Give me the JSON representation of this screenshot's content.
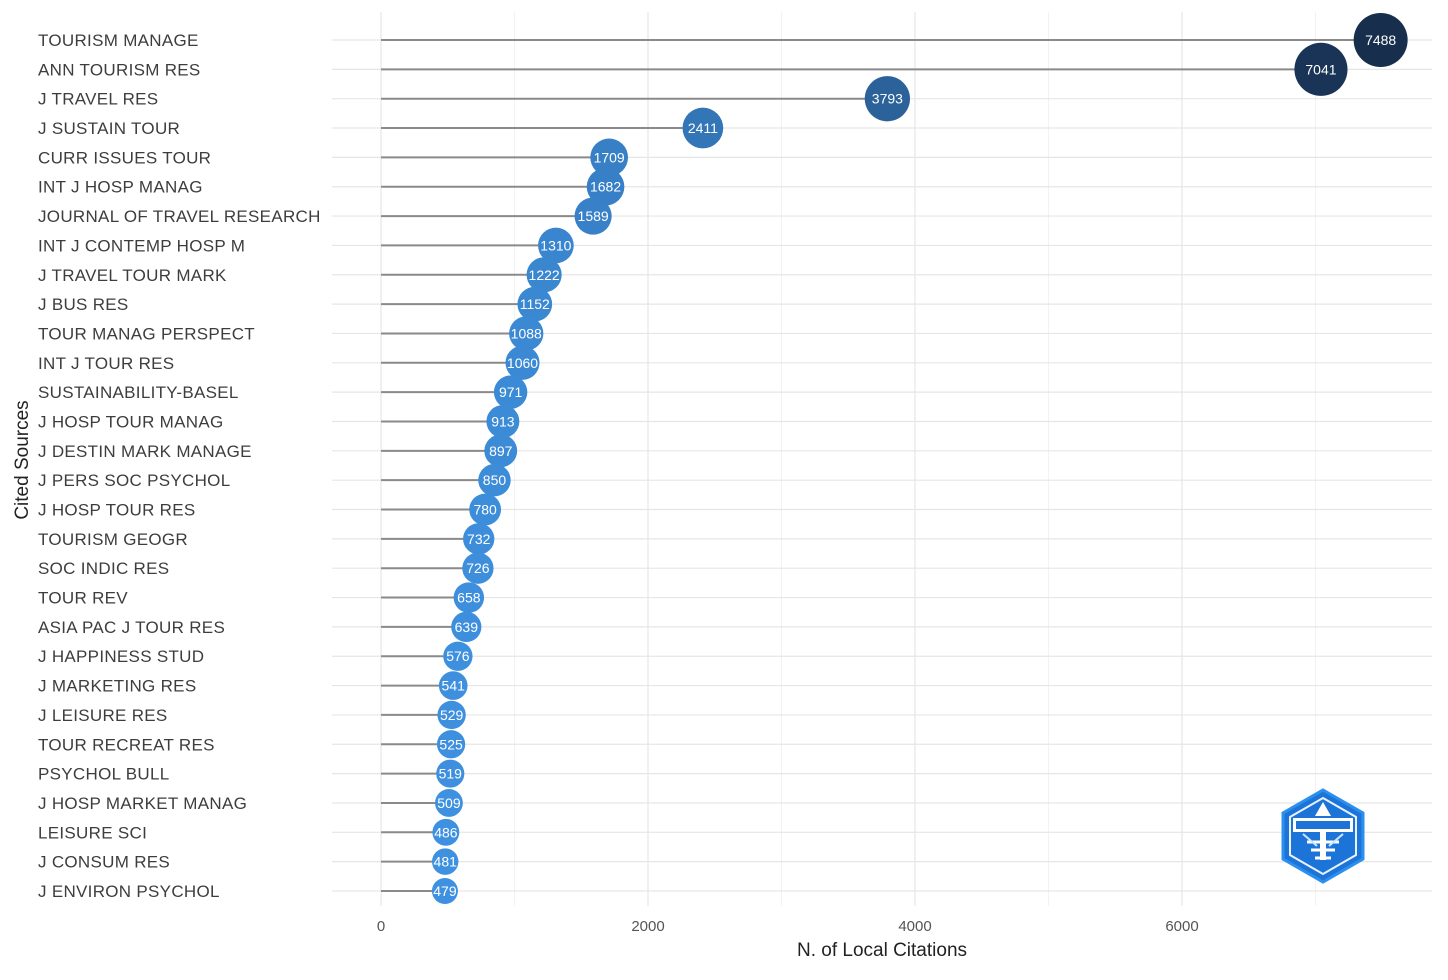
{
  "chart_data": {
    "type": "lollipop",
    "title": "",
    "xlabel": "N. of Local Citations",
    "ylabel": "Cited Sources",
    "xlim": [
      0,
      7600
    ],
    "xticks": [
      0,
      2000,
      4000,
      6000
    ],
    "grid": true,
    "color_scale": {
      "low": "#3e91e0",
      "high": "#172e4d"
    },
    "categories": [
      "TOURISM MANAGE",
      "ANN TOURISM RES",
      "J TRAVEL RES",
      "J SUSTAIN TOUR",
      "CURR ISSUES TOUR",
      "INT J HOSP MANAG",
      "JOURNAL OF TRAVEL RESEARCH",
      "INT J CONTEMP HOSP M",
      "J TRAVEL TOUR MARK",
      "J BUS RES",
      "TOUR MANAG PERSPECT",
      "INT J TOUR RES",
      "SUSTAINABILITY-BASEL",
      "J HOSP TOUR MANAG",
      "J DESTIN MARK MANAGE",
      "J PERS SOC PSYCHOL",
      "J HOSP TOUR RES",
      "TOURISM GEOGR",
      "SOC INDIC RES",
      "TOUR REV",
      "ASIA PAC J TOUR RES",
      "J HAPPINESS STUD",
      "J MARKETING RES",
      "J LEISURE RES",
      "TOUR RECREAT RES",
      "PSYCHOL BULL",
      "J HOSP MARKET MANAG",
      "LEISURE SCI",
      "J CONSUM RES",
      "J ENVIRON PSYCHOL"
    ],
    "values": [
      7488,
      7041,
      3793,
      2411,
      1709,
      1682,
      1589,
      1310,
      1222,
      1152,
      1088,
      1060,
      971,
      913,
      897,
      850,
      780,
      732,
      726,
      658,
      639,
      576,
      541,
      529,
      525,
      519,
      509,
      486,
      481,
      479
    ],
    "point_labels": [
      "7488",
      "7041",
      "3793",
      "2411",
      "1709",
      "1682",
      "1589",
      "1310",
      "1222",
      "1152",
      "1088",
      "1060",
      "971",
      "913",
      "897",
      "850",
      "780",
      "732",
      "726",
      "658",
      "639",
      "576",
      "541",
      "529",
      "525",
      "519",
      "509",
      "486",
      "481",
      "479"
    ]
  },
  "logo": {
    "name": "bibliometrix",
    "icon": "hexagon-logo-icon"
  }
}
